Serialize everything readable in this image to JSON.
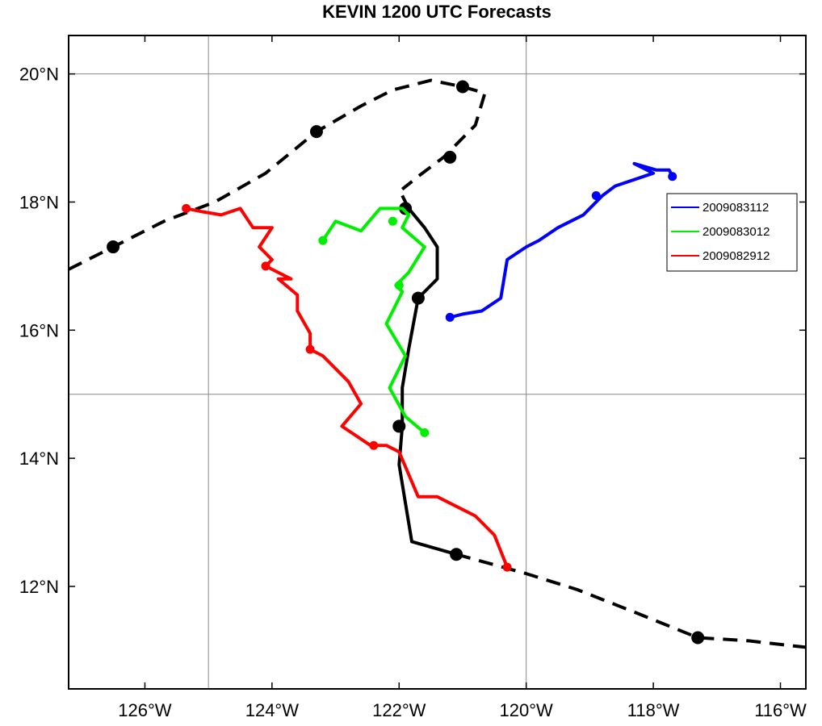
{
  "chart_data": {
    "type": "line",
    "title": "KEVIN 1200 UTC Forecasts",
    "xlabel": "",
    "ylabel": "",
    "xlim": [
      -127.2,
      -115.6
    ],
    "ylim": [
      10.4,
      20.6
    ],
    "x_ticks": [
      -126,
      -124,
      -122,
      -120,
      -118,
      -116
    ],
    "x_tick_labels": [
      "126°W",
      "124°W",
      "122°W",
      "120°W",
      "118°W",
      "116°W"
    ],
    "y_ticks": [
      12,
      14,
      16,
      18,
      20
    ],
    "y_tick_labels": [
      "12°N",
      "14°N",
      "16°N",
      "18°N",
      "20°N"
    ],
    "grid_x": [
      -125,
      -120
    ],
    "grid_y": [
      15,
      20
    ],
    "legend": {
      "position": "right"
    },
    "series": [
      {
        "name": "",
        "color": "#000000",
        "style": "dashed",
        "role": "best-track-before",
        "points": [
          [
            -127.2,
            16.95
          ],
          [
            -126.5,
            17.3
          ],
          [
            -125.7,
            17.7
          ],
          [
            -124.9,
            18.0
          ],
          [
            -124.1,
            18.45
          ],
          [
            -123.3,
            19.1
          ],
          [
            -122.6,
            19.5
          ],
          [
            -122.1,
            19.75
          ],
          [
            -121.5,
            19.9
          ],
          [
            -121.0,
            19.8
          ],
          [
            -120.65,
            19.7
          ],
          [
            -120.8,
            19.2
          ],
          [
            -121.3,
            18.7
          ],
          [
            -121.7,
            18.4
          ],
          [
            -121.95,
            18.2
          ]
        ],
        "markers": [
          [
            -126.5,
            17.3
          ],
          [
            -123.3,
            19.1
          ],
          [
            -121.0,
            19.8
          ],
          [
            -121.2,
            18.7
          ]
        ]
      },
      {
        "name": "",
        "color": "#000000",
        "style": "solid",
        "role": "best-track",
        "points": [
          [
            -121.95,
            18.1
          ],
          [
            -121.85,
            17.9
          ],
          [
            -121.6,
            17.6
          ],
          [
            -121.4,
            17.3
          ],
          [
            -121.4,
            16.8
          ],
          [
            -121.7,
            16.5
          ],
          [
            -121.85,
            15.7
          ],
          [
            -121.95,
            15.1
          ],
          [
            -121.95,
            14.5
          ],
          [
            -122.0,
            13.9
          ],
          [
            -121.9,
            13.3
          ],
          [
            -121.8,
            12.7
          ],
          [
            -121.1,
            12.5
          ]
        ],
        "markers": [
          [
            -121.9,
            17.9
          ],
          [
            -121.7,
            16.5
          ],
          [
            -122.0,
            14.5
          ],
          [
            -121.1,
            12.5
          ]
        ]
      },
      {
        "name": "",
        "color": "#000000",
        "style": "dashed",
        "role": "best-track-after",
        "points": [
          [
            -121.1,
            12.5
          ],
          [
            -120.0,
            12.2
          ],
          [
            -119.2,
            11.95
          ],
          [
            -118.3,
            11.6
          ],
          [
            -117.3,
            11.2
          ],
          [
            -116.5,
            11.15
          ],
          [
            -115.6,
            11.05
          ]
        ],
        "markers": [
          [
            -117.3,
            11.2
          ]
        ]
      },
      {
        "name": "2009083112",
        "color": "#0000ff",
        "style": "solid",
        "points": [
          [
            -121.2,
            16.2
          ],
          [
            -121.0,
            16.25
          ],
          [
            -120.7,
            16.3
          ],
          [
            -120.4,
            16.5
          ],
          [
            -120.3,
            17.1
          ],
          [
            -120.0,
            17.3
          ],
          [
            -119.8,
            17.4
          ],
          [
            -119.5,
            17.6
          ],
          [
            -119.1,
            17.8
          ],
          [
            -118.8,
            18.1
          ],
          [
            -118.6,
            18.25
          ],
          [
            -118.0,
            18.45
          ],
          [
            -118.3,
            18.6
          ],
          [
            -117.95,
            18.5
          ],
          [
            -117.75,
            18.5
          ],
          [
            -117.7,
            18.4
          ]
        ],
        "markers": [
          [
            -121.2,
            16.2
          ],
          [
            -118.9,
            18.1
          ],
          [
            -117.7,
            18.4
          ]
        ]
      },
      {
        "name": "2009083012",
        "color": "#00ee00",
        "style": "solid",
        "points": [
          [
            -121.6,
            14.4
          ],
          [
            -121.9,
            14.65
          ],
          [
            -122.15,
            15.1
          ],
          [
            -121.9,
            15.6
          ],
          [
            -122.2,
            16.1
          ],
          [
            -121.95,
            16.6
          ],
          [
            -122.05,
            16.7
          ],
          [
            -121.85,
            16.9
          ],
          [
            -121.6,
            17.3
          ],
          [
            -121.95,
            17.6
          ],
          [
            -121.85,
            17.8
          ],
          [
            -121.95,
            17.9
          ],
          [
            -122.3,
            17.9
          ],
          [
            -122.6,
            17.55
          ],
          [
            -123.0,
            17.7
          ],
          [
            -123.2,
            17.4
          ]
        ],
        "markers": [
          [
            -121.6,
            14.4
          ],
          [
            -122.0,
            16.7
          ],
          [
            -122.1,
            17.7
          ],
          [
            -123.2,
            17.4
          ]
        ]
      },
      {
        "name": "2009082912",
        "color": "#ff0000",
        "style": "solid",
        "points": [
          [
            -120.3,
            12.3
          ],
          [
            -120.5,
            12.8
          ],
          [
            -120.8,
            13.1
          ],
          [
            -121.4,
            13.4
          ],
          [
            -121.7,
            13.4
          ],
          [
            -122.0,
            14.1
          ],
          [
            -122.2,
            14.2
          ],
          [
            -122.45,
            14.2
          ],
          [
            -122.9,
            14.5
          ],
          [
            -122.6,
            14.85
          ],
          [
            -122.8,
            15.2
          ],
          [
            -123.2,
            15.6
          ],
          [
            -123.4,
            15.7
          ],
          [
            -123.4,
            15.95
          ],
          [
            -123.6,
            16.3
          ],
          [
            -123.6,
            16.55
          ],
          [
            -123.9,
            16.8
          ],
          [
            -123.7,
            16.8
          ],
          [
            -124.1,
            17.0
          ],
          [
            -124.0,
            17.1
          ],
          [
            -124.2,
            17.3
          ],
          [
            -124.0,
            17.6
          ],
          [
            -124.3,
            17.6
          ],
          [
            -124.5,
            17.9
          ],
          [
            -124.8,
            17.8
          ],
          [
            -125.1,
            17.85
          ],
          [
            -125.35,
            17.9
          ]
        ],
        "markers": [
          [
            -120.3,
            12.3
          ],
          [
            -122.4,
            14.2
          ],
          [
            -123.4,
            15.7
          ],
          [
            -124.1,
            17.0
          ],
          [
            -125.35,
            17.9
          ]
        ]
      }
    ]
  }
}
